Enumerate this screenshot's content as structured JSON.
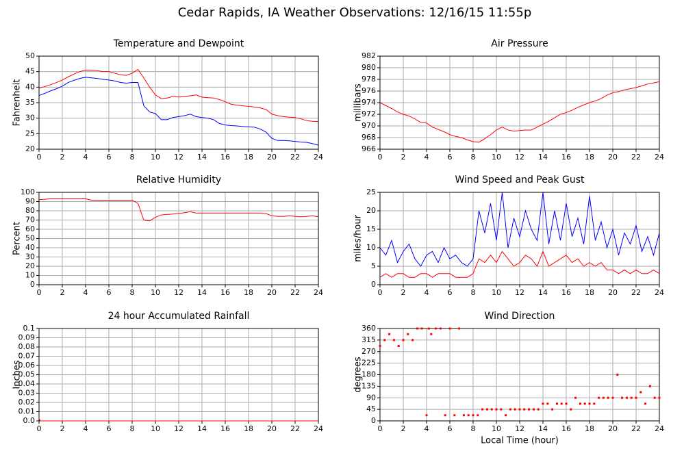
{
  "title": "Cedar Rapids, IA Weather Observations: 12/16/15 11:55p",
  "chart_data": [
    {
      "type": "line",
      "title": "Temperature and Dewpoint",
      "ylabel": "Fahrenheit",
      "x": [
        0,
        0.5,
        1,
        1.5,
        2,
        2.5,
        3,
        3.5,
        4,
        4.5,
        5,
        5.5,
        6,
        6.5,
        7,
        7.5,
        8,
        8.5,
        9,
        9.5,
        10,
        10.5,
        11,
        11.5,
        12,
        12.5,
        13,
        13.5,
        14,
        14.5,
        15,
        15.5,
        16,
        16.5,
        17,
        17.5,
        18,
        18.5,
        19,
        19.5,
        20,
        20.5,
        21,
        21.5,
        22,
        22.5,
        23,
        23.5,
        24
      ],
      "series": [
        {
          "name": "Temperature",
          "color": "#ff0000",
          "values": [
            39.7,
            40.2,
            40.8,
            41.5,
            42.3,
            43.3,
            44.2,
            45,
            45.5,
            45.5,
            45.3,
            45,
            45,
            44.5,
            44,
            43.8,
            44.5,
            45.7,
            43,
            40,
            37.5,
            36.3,
            36.5,
            37,
            36.8,
            37,
            37.2,
            37.5,
            36.8,
            36.6,
            36.5,
            36,
            35.3,
            34.5,
            34.2,
            34,
            33.8,
            33.6,
            33.3,
            32.8,
            31.3,
            30.8,
            30.5,
            30.3,
            30.2,
            29.8,
            29.2,
            29,
            28.9
          ]
        },
        {
          "name": "Dewpoint",
          "color": "#0000ff",
          "values": [
            37.3,
            38,
            38.8,
            39.5,
            40.3,
            41.5,
            42.2,
            42.8,
            43.2,
            43,
            42.8,
            42.5,
            42.3,
            42,
            41.5,
            41.3,
            41.5,
            41.5,
            34,
            32,
            31.5,
            29.5,
            29.5,
            30.2,
            30.5,
            30.8,
            31.3,
            30.5,
            30.2,
            30,
            29.5,
            28.3,
            27.8,
            27.6,
            27.5,
            27.3,
            27.2,
            27.1,
            26.5,
            25.5,
            23.5,
            22.8,
            22.8,
            22.7,
            22.5,
            22.3,
            22.2,
            21.8,
            21.3
          ]
        }
      ],
      "xlim": [
        0,
        24
      ],
      "xticks": [
        0,
        2,
        4,
        6,
        8,
        10,
        12,
        14,
        16,
        18,
        20,
        22,
        24
      ],
      "ylim": [
        20,
        50
      ],
      "yticks": [
        20,
        25,
        30,
        35,
        40,
        45,
        50
      ],
      "grid": true
    },
    {
      "type": "line",
      "title": "Air Pressure",
      "ylabel": "millibars",
      "x": [
        0,
        0.5,
        1,
        1.5,
        2,
        2.5,
        3,
        3.5,
        4,
        4.5,
        5,
        5.5,
        6,
        6.5,
        7,
        7.5,
        8,
        8.5,
        9,
        9.5,
        10,
        10.5,
        11,
        11.5,
        12,
        12.5,
        13,
        13.5,
        14,
        14.5,
        15,
        15.5,
        16,
        16.5,
        17,
        17.5,
        18,
        18.5,
        19,
        19.5,
        20,
        20.5,
        21,
        21.5,
        22,
        22.5,
        23,
        23.5,
        24
      ],
      "series": [
        {
          "name": "Pressure",
          "color": "#ff0000",
          "values": [
            974,
            973.5,
            973,
            972.4,
            972,
            971.7,
            971.2,
            970.6,
            970.5,
            969.8,
            969.4,
            969,
            968.5,
            968.2,
            968,
            967.6,
            967.3,
            967.2,
            967.8,
            968.5,
            969.3,
            969.8,
            969.3,
            969.1,
            969.2,
            969.3,
            969.3,
            969.8,
            970.3,
            970.8,
            971.4,
            972,
            972.3,
            972.7,
            973.2,
            973.6,
            974,
            974.3,
            974.7,
            975.3,
            975.7,
            975.9,
            976.2,
            976.4,
            976.6,
            976.9,
            977.2,
            977.4,
            977.6
          ]
        }
      ],
      "xlim": [
        0,
        24
      ],
      "xticks": [
        0,
        2,
        4,
        6,
        8,
        10,
        12,
        14,
        16,
        18,
        20,
        22,
        24
      ],
      "ylim": [
        966,
        982
      ],
      "yticks": [
        966,
        968,
        970,
        972,
        974,
        976,
        978,
        980,
        982
      ],
      "grid": true
    },
    {
      "type": "line",
      "title": "Relative Humidity",
      "ylabel": "Percent",
      "x": [
        0,
        0.5,
        1,
        1.5,
        2,
        2.5,
        3,
        3.5,
        4,
        4.5,
        5,
        5.5,
        6,
        6.5,
        7,
        7.5,
        8,
        8.5,
        9,
        9.5,
        10,
        10.5,
        11,
        11.5,
        12,
        12.5,
        13,
        13.5,
        14,
        14.5,
        15,
        15.5,
        16,
        16.5,
        17,
        17.5,
        18,
        18.5,
        19,
        19.5,
        20,
        20.5,
        21,
        21.5,
        22,
        22.5,
        23,
        23.5,
        24
      ],
      "series": [
        {
          "name": "Relative Humidity",
          "color": "#ff0000",
          "values": [
            92,
            92.5,
            93,
            93,
            93,
            93,
            93,
            93,
            93,
            91.5,
            91.5,
            91.5,
            91.5,
            91.5,
            91.5,
            91.5,
            91.5,
            88,
            70,
            69,
            73,
            75.5,
            76,
            76.5,
            77,
            78,
            79,
            77.5,
            77.5,
            77.5,
            77.5,
            77.5,
            77.5,
            77.5,
            77.5,
            77.5,
            77.5,
            77.5,
            77.5,
            77,
            74.5,
            74,
            74,
            74.5,
            74,
            73.5,
            74,
            74.5,
            73.5
          ]
        }
      ],
      "xlim": [
        0,
        24
      ],
      "xticks": [
        0,
        2,
        4,
        6,
        8,
        10,
        12,
        14,
        16,
        18,
        20,
        22,
        24
      ],
      "ylim": [
        0,
        100
      ],
      "yticks": [
        0,
        10,
        20,
        30,
        40,
        50,
        60,
        70,
        80,
        90,
        100
      ],
      "grid": true
    },
    {
      "type": "line",
      "title": "Wind Speed and Peak Gust",
      "ylabel": "miles/hour",
      "x": [
        0,
        0.5,
        1,
        1.5,
        2,
        2.5,
        3,
        3.5,
        4,
        4.5,
        5,
        5.5,
        6,
        6.5,
        7,
        7.5,
        8,
        8.5,
        9,
        9.5,
        10,
        10.5,
        11,
        11.5,
        12,
        12.5,
        13,
        13.5,
        14,
        14.5,
        15,
        15.5,
        16,
        16.5,
        17,
        17.5,
        18,
        18.5,
        19,
        19.5,
        20,
        20.5,
        21,
        21.5,
        22,
        22.5,
        23,
        23.5,
        24
      ],
      "series": [
        {
          "name": "Peak Gust",
          "color": "#0000ff",
          "values": [
            10,
            8,
            12,
            6,
            9,
            11,
            7,
            5,
            8,
            9,
            6,
            10,
            7,
            8,
            6,
            5,
            7,
            20,
            14,
            22,
            12,
            25,
            10,
            18,
            13,
            20,
            15,
            12,
            25,
            11,
            20,
            12,
            22,
            13,
            18,
            11,
            24,
            12,
            17,
            10,
            15,
            8,
            14,
            11,
            16,
            9,
            13,
            8,
            14
          ]
        },
        {
          "name": "Wind Speed",
          "color": "#ff0000",
          "values": [
            2,
            3,
            2,
            3,
            3,
            2,
            2,
            3,
            3,
            2,
            3,
            3,
            3,
            2,
            2,
            2,
            3,
            7,
            6,
            8,
            6,
            9,
            7,
            5,
            6,
            8,
            7,
            5,
            9,
            5,
            6,
            7,
            8,
            6,
            7,
            5,
            6,
            5,
            6,
            4,
            4,
            3,
            4,
            3,
            4,
            3,
            3,
            4,
            3
          ]
        }
      ],
      "xlim": [
        0,
        24
      ],
      "xticks": [
        0,
        2,
        4,
        6,
        8,
        10,
        12,
        14,
        16,
        18,
        20,
        22,
        24
      ],
      "ylim": [
        0,
        25
      ],
      "yticks": [
        0,
        5,
        10,
        15,
        20,
        25
      ],
      "grid": true
    },
    {
      "type": "line",
      "title": "24 hour Accumulated Rainfall",
      "ylabel": "Inches",
      "x": [
        0,
        0.1,
        24
      ],
      "series": [
        {
          "name": "Rainfall",
          "color": "#ff0000",
          "values": [
            0.003,
            0,
            0
          ]
        }
      ],
      "xlim": [
        0,
        24
      ],
      "xticks": [
        0,
        2,
        4,
        6,
        8,
        10,
        12,
        14,
        16,
        18,
        20,
        22,
        24
      ],
      "ylim": [
        0,
        0.1
      ],
      "yticks": [
        {
          "value": 0,
          "label": "0.0"
        },
        0.01,
        0.02,
        0.03,
        0.04,
        0.05,
        0.06,
        0.07,
        0.08,
        0.09,
        0.1
      ],
      "grid": true
    },
    {
      "type": "scatter",
      "title": "Wind Direction",
      "ylabel": "degrees",
      "xlabel": "Local Time (hour)",
      "x": [
        0,
        0.4,
        0.8,
        1.2,
        1.6,
        2,
        2.4,
        2.8,
        3.2,
        3.6,
        4,
        4.2,
        4.4,
        4.8,
        5.2,
        5.6,
        6,
        6.4,
        6.8,
        7.2,
        7.6,
        8,
        8.4,
        8.8,
        9.2,
        9.6,
        10,
        10.4,
        10.8,
        11.2,
        11.6,
        12,
        12.4,
        12.8,
        13.2,
        13.6,
        14,
        14.4,
        14.8,
        15.2,
        15.6,
        16,
        16.4,
        16.8,
        17.2,
        17.6,
        18,
        18.4,
        18.8,
        19.2,
        19.6,
        20,
        20.4,
        20.8,
        21.2,
        21.6,
        22,
        22.4,
        22.8,
        23.2,
        23.6,
        24
      ],
      "series": [
        {
          "name": "Wind Direction",
          "color": "#ff0000",
          "values": [
            292,
            315,
            338,
            315,
            292,
            315,
            338,
            315,
            360,
            360,
            22,
            360,
            338,
            360,
            360,
            22,
            360,
            22,
            360,
            22,
            22,
            22,
            22,
            45,
            45,
            45,
            45,
            45,
            22,
            45,
            45,
            45,
            45,
            45,
            45,
            45,
            67,
            67,
            45,
            67,
            67,
            67,
            45,
            90,
            67,
            67,
            67,
            67,
            90,
            90,
            90,
            90,
            180,
            90,
            90,
            90,
            90,
            112,
            67,
            135,
            90,
            90
          ]
        }
      ],
      "xlim": [
        0,
        24
      ],
      "xticks": [
        0,
        2,
        4,
        6,
        8,
        10,
        12,
        14,
        16,
        18,
        20,
        22,
        24
      ],
      "ylim": [
        0,
        360
      ],
      "yticks": [
        0,
        45,
        90,
        135,
        180,
        225,
        270,
        315,
        360
      ],
      "grid": true
    }
  ]
}
